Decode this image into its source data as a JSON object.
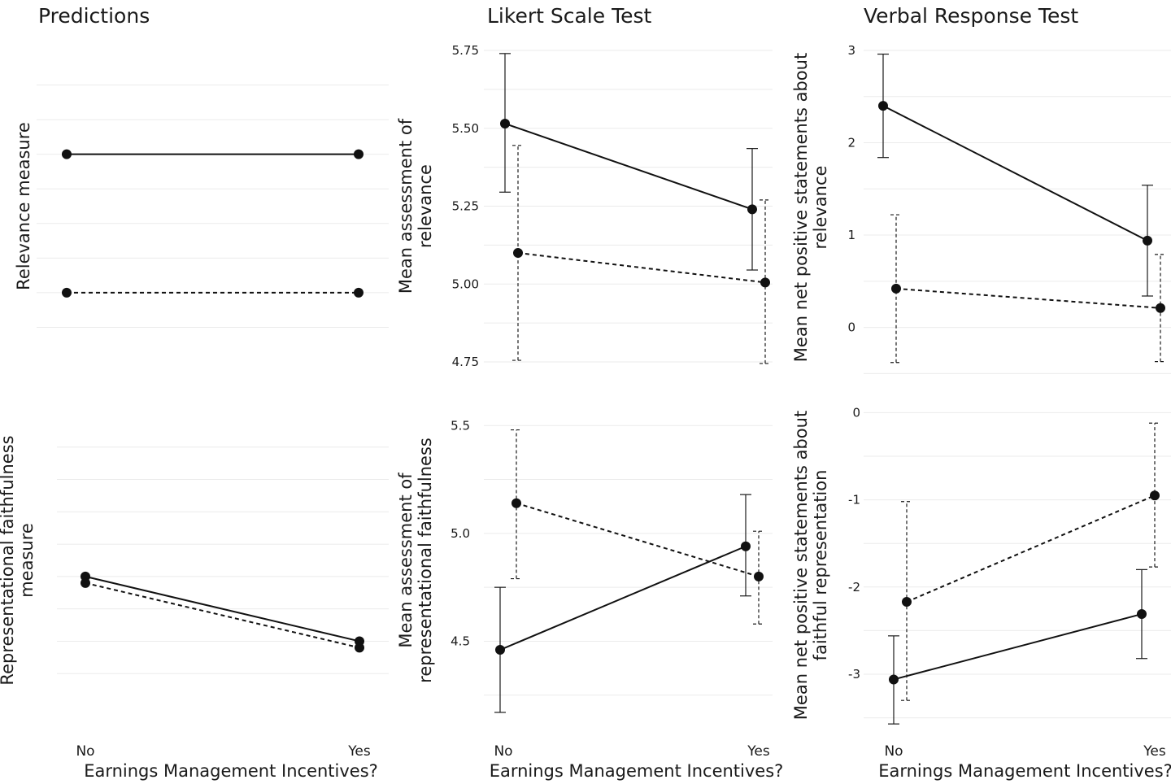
{
  "chart_data": [
    {
      "id": "pred-rel",
      "type": "line",
      "title": "Predictions",
      "ylabel": [
        "Relevance measure"
      ],
      "xlabel": "",
      "categories": [
        "No",
        "Yes"
      ],
      "ylim": [
        0,
        9
      ],
      "grid_values": [
        1,
        2,
        3,
        4,
        5,
        6,
        7,
        8
      ],
      "ytick_values": [],
      "ytick_labels": [],
      "show_x_labels": false,
      "series": [
        {
          "style": "solid",
          "dodge": 0,
          "values": [
            6,
            6
          ]
        },
        {
          "style": "dashed",
          "dodge": 0,
          "values": [
            2,
            2
          ]
        }
      ]
    },
    {
      "id": "likert-rel",
      "type": "line",
      "title": "Likert Scale Test",
      "ylabel": [
        "Mean assessment of",
        "relevance"
      ],
      "xlabel": "",
      "categories": [
        "No",
        "Yes"
      ],
      "ylim": [
        4.75,
        5.75
      ],
      "grid_values": [
        4.75,
        4.875,
        5.0,
        5.125,
        5.25,
        5.375,
        5.5,
        5.625,
        5.75
      ],
      "ytick_values": [
        4.75,
        5.0,
        5.25,
        5.5,
        5.75
      ],
      "ytick_labels": [
        "4.75",
        "5.00",
        "5.25",
        "5.50",
        "5.75"
      ],
      "show_x_labels": false,
      "series": [
        {
          "style": "solid",
          "dodge": -0.04,
          "values": [
            5.515,
            5.24
          ],
          "err_low": [
            5.295,
            5.045
          ],
          "err_high": [
            5.74,
            5.435
          ]
        },
        {
          "style": "dashed",
          "dodge": 0.04,
          "values": [
            5.1,
            5.005
          ],
          "err_low": [
            4.755,
            4.745
          ],
          "err_high": [
            5.445,
            5.27
          ]
        }
      ]
    },
    {
      "id": "verbal-rel",
      "type": "line",
      "title": "Verbal Response Test",
      "ylabel": [
        "Mean net positive statements about",
        "relevance"
      ],
      "xlabel": "",
      "categories": [
        "No",
        "Yes"
      ],
      "ylim": [
        -0.4,
        3.0
      ],
      "grid_values": [
        -0.5,
        0,
        0.5,
        1,
        1.5,
        2,
        2.5,
        3
      ],
      "ytick_values": [
        0,
        1,
        2,
        3
      ],
      "ytick_labels": [
        "0",
        "1",
        "2",
        "3"
      ],
      "show_x_labels": false,
      "series": [
        {
          "style": "solid",
          "dodge": -0.04,
          "values": [
            2.4,
            0.94
          ],
          "err_low": [
            1.84,
            0.34
          ],
          "err_high": [
            2.96,
            1.54
          ]
        },
        {
          "style": "dashed",
          "dodge": 0.04,
          "values": [
            0.42,
            0.21
          ],
          "err_low": [
            -0.38,
            -0.37
          ],
          "err_high": [
            1.22,
            0.79
          ]
        }
      ]
    },
    {
      "id": "pred-rf",
      "type": "line",
      "title": "",
      "ylabel": [
        "Representational faithfulness",
        "measure"
      ],
      "xlabel": "Earnings Management Incentives?",
      "categories": [
        "No",
        "Yes"
      ],
      "ylim": [
        0,
        9
      ],
      "grid_values": [
        1,
        2,
        3,
        4,
        5,
        6,
        7,
        8
      ],
      "ytick_values": [],
      "ytick_labels": [],
      "show_x_labels": true,
      "series": [
        {
          "style": "solid",
          "dodge": 0,
          "values": [
            4,
            2
          ]
        },
        {
          "style": "dashed",
          "dodge": 0,
          "values": [
            3.8,
            1.8
          ]
        }
      ]
    },
    {
      "id": "likert-rf",
      "type": "line",
      "title": "",
      "ylabel": [
        "Mean assessment of",
        "representational faithfulness"
      ],
      "xlabel": "Earnings Management Incentives?",
      "categories": [
        "No",
        "Yes"
      ],
      "ylim": [
        4.2,
        5.55
      ],
      "grid_values": [
        4.25,
        4.5,
        4.75,
        5.0,
        5.25,
        5.5
      ],
      "ytick_values": [
        4.5,
        5.0,
        5.5
      ],
      "ytick_labels": [
        "4.5",
        "5.0",
        "5.5"
      ],
      "show_x_labels": true,
      "series": [
        {
          "style": "solid",
          "dodge": -0.04,
          "values": [
            4.46,
            4.94
          ],
          "err_low": [
            4.17,
            4.71
          ],
          "err_high": [
            4.75,
            5.18
          ]
        },
        {
          "style": "dashed",
          "dodge": 0.04,
          "values": [
            5.14,
            4.8
          ],
          "err_low": [
            4.79,
            4.58
          ],
          "err_high": [
            5.48,
            5.01
          ]
        }
      ]
    },
    {
      "id": "verbal-rf",
      "type": "line",
      "title": "",
      "ylabel": [
        "Mean net positive statements about",
        "faithful representation"
      ],
      "xlabel": "Earnings Management Incentives?",
      "categories": [
        "No",
        "Yes"
      ],
      "ylim": [
        -3.55,
        0.05
      ],
      "grid_values": [
        -3.5,
        -3,
        -2.5,
        -2,
        -1.5,
        -1,
        -0.5,
        0
      ],
      "ytick_values": [
        -3,
        -2,
        -1,
        0
      ],
      "ytick_labels": [
        "-3",
        "-2",
        "-1",
        "0"
      ],
      "show_x_labels": true,
      "series": [
        {
          "style": "solid",
          "dodge": -0.04,
          "values": [
            -3.06,
            -2.31
          ],
          "err_low": [
            -3.57,
            -2.82
          ],
          "err_high": [
            -2.56,
            -1.8
          ]
        },
        {
          "style": "dashed",
          "dodge": 0.04,
          "values": [
            -2.17,
            -0.95
          ],
          "err_low": [
            -3.3,
            -1.77
          ],
          "err_high": [
            -1.02,
            -0.12
          ]
        }
      ]
    }
  ]
}
